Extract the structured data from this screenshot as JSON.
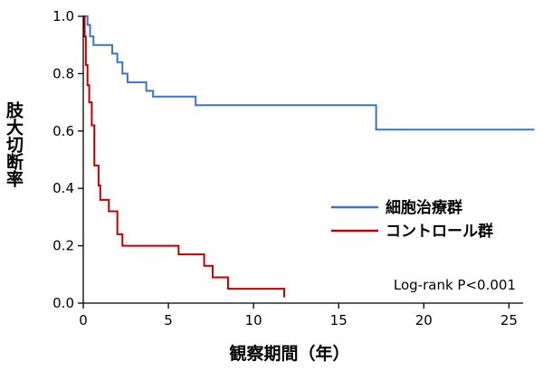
{
  "chart_data": {
    "type": "line",
    "step": true,
    "ylabel": "肢大切断率",
    "xlabel": "観察期間（年）",
    "xlim": [
      0,
      27
    ],
    "ylim": [
      0,
      1.0
    ],
    "xticks": [
      0,
      5,
      10,
      15,
      20,
      25
    ],
    "yticks": [
      "0.0",
      "0.2",
      "0.4",
      "0.6",
      "0.8",
      "1.0"
    ],
    "annotation": "Log-rank P<0.001",
    "grid": false,
    "legend_position": "center-right",
    "series": [
      {
        "name": "細胞治療群",
        "color": "#3b73c9",
        "x": [
          0,
          0.25,
          0.4,
          0.6,
          1.7,
          2.0,
          2.3,
          2.6,
          2.7,
          3.7,
          4.1,
          6.6,
          17.2,
          26.5
        ],
        "y": [
          1.0,
          0.97,
          0.93,
          0.9,
          0.87,
          0.84,
          0.8,
          0.77,
          0.77,
          0.74,
          0.72,
          0.69,
          0.605,
          0.605
        ]
      },
      {
        "name": "コントロール群",
        "color": "#c00000",
        "x": [
          0,
          0.08,
          0.15,
          0.25,
          0.35,
          0.5,
          0.65,
          0.9,
          1.0,
          1.5,
          2.0,
          2.3,
          2.7,
          5.6,
          7.1,
          7.6,
          8.0,
          8.5,
          11.8
        ],
        "y": [
          1.0,
          0.93,
          0.83,
          0.76,
          0.7,
          0.62,
          0.48,
          0.41,
          0.36,
          0.32,
          0.24,
          0.2,
          0.2,
          0.17,
          0.13,
          0.09,
          0.09,
          0.05,
          0.02
        ]
      }
    ]
  }
}
